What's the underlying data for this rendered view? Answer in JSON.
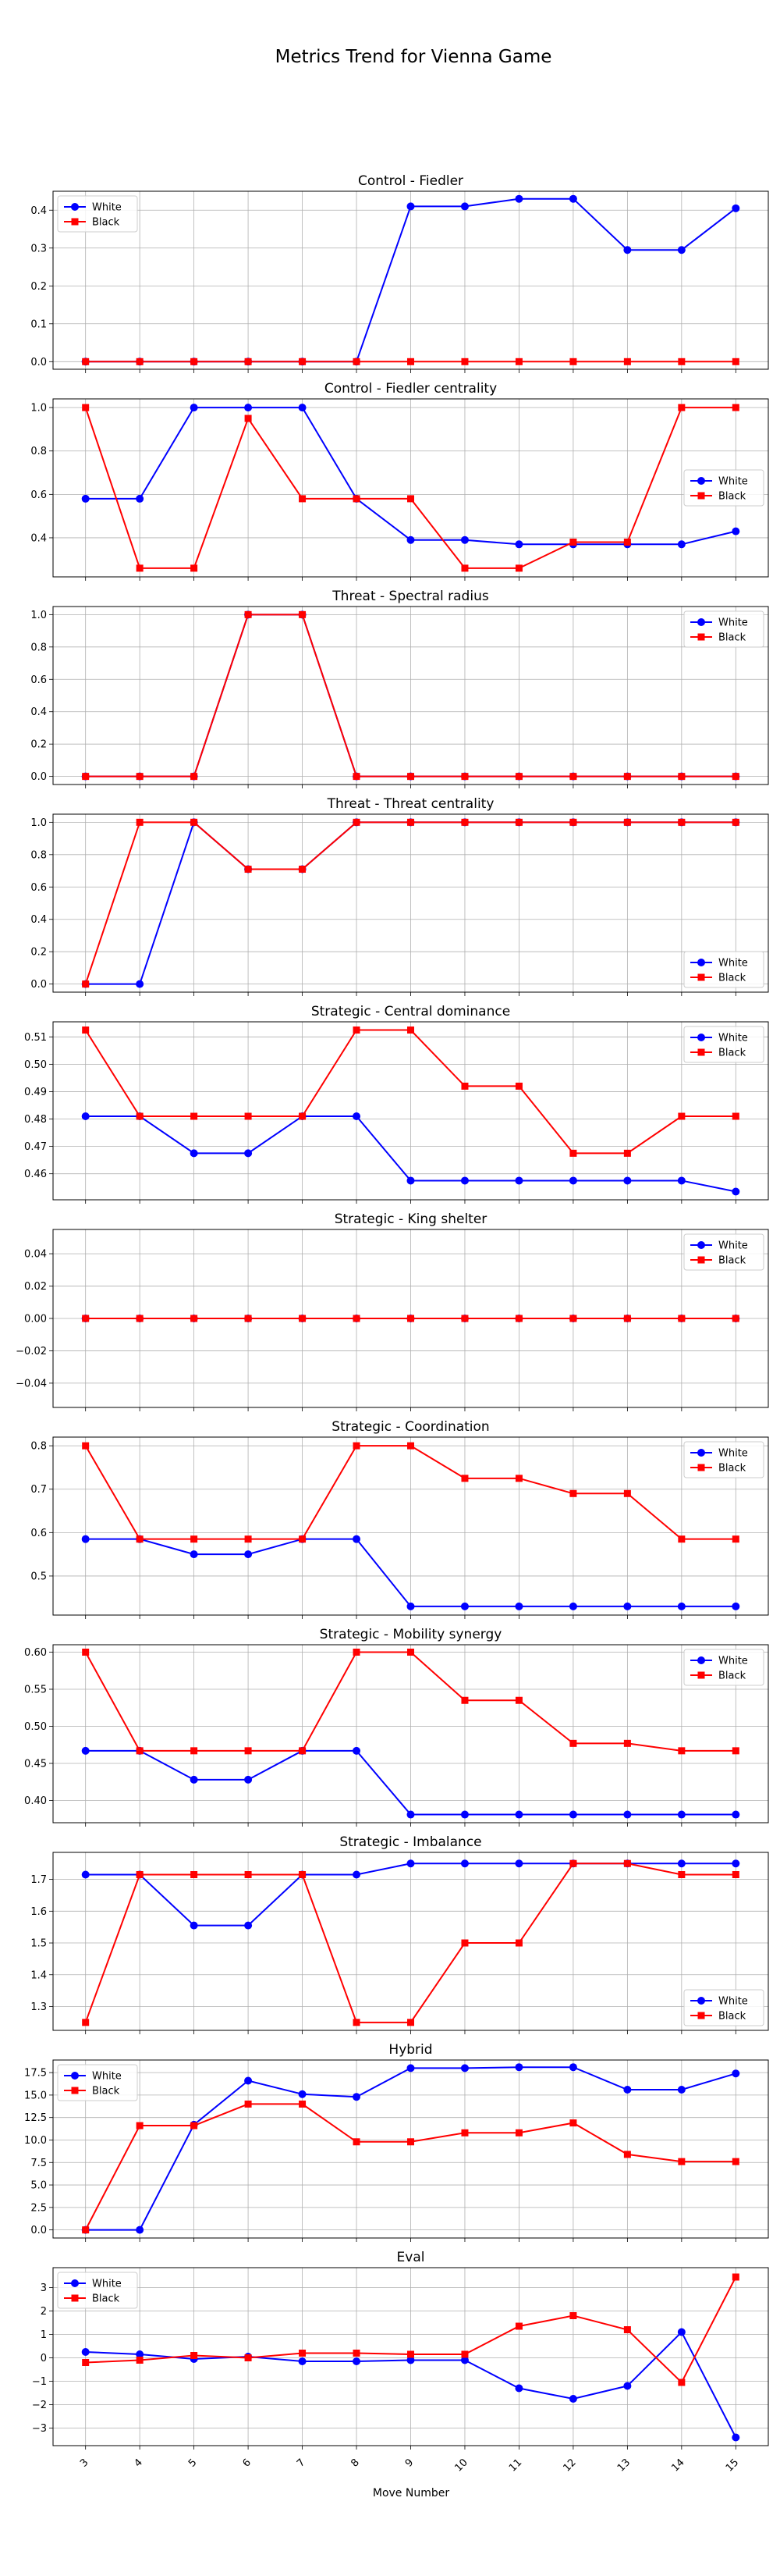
{
  "figure": {
    "title": "Metrics Trend for Vienna Game",
    "xlabel": "Move Number",
    "x_ticks": [
      3,
      4,
      5,
      6,
      7,
      8,
      9,
      10,
      11,
      12,
      13,
      14,
      15
    ]
  },
  "colors": {
    "white_series": "#0000ff",
    "black_series": "#ff0000",
    "grid": "#b0b0b0"
  },
  "chart_data": [
    {
      "type": "line",
      "title": "Control - Fiedler",
      "legend": "top-left",
      "x": [
        3,
        4,
        5,
        6,
        7,
        8,
        9,
        10,
        11,
        12,
        13,
        14,
        15
      ],
      "ylim": [
        -0.02,
        0.45
      ],
      "yticks": [
        0.0,
        0.1,
        0.2,
        0.3,
        0.4
      ],
      "ytick_labels": [
        "0.0",
        "0.1",
        "0.2",
        "0.3",
        "0.4"
      ],
      "series": [
        {
          "name": "White",
          "marker": "circle",
          "values": [
            0,
            0,
            0,
            0,
            0,
            0,
            0.41,
            0.41,
            0.43,
            0.43,
            0.295,
            0.295,
            0.405
          ]
        },
        {
          "name": "Black",
          "marker": "square",
          "values": [
            0,
            0,
            0,
            0,
            0,
            0,
            0,
            0,
            0,
            0,
            0,
            0,
            0
          ]
        }
      ]
    },
    {
      "type": "line",
      "title": "Control - Fiedler centrality",
      "legend": "center-right",
      "x": [
        3,
        4,
        5,
        6,
        7,
        8,
        9,
        10,
        11,
        12,
        13,
        14,
        15
      ],
      "ylim": [
        0.22,
        1.04
      ],
      "yticks": [
        0.4,
        0.6,
        0.8,
        1.0
      ],
      "ytick_labels": [
        "0.4",
        "0.6",
        "0.8",
        "1.0"
      ],
      "series": [
        {
          "name": "White",
          "marker": "circle",
          "values": [
            0.58,
            0.58,
            1.0,
            1.0,
            1.0,
            0.58,
            0.39,
            0.39,
            0.37,
            0.37,
            0.37,
            0.37,
            0.43
          ]
        },
        {
          "name": "Black",
          "marker": "square",
          "values": [
            1.0,
            0.26,
            0.26,
            0.95,
            0.58,
            0.58,
            0.58,
            0.26,
            0.26,
            0.38,
            0.38,
            1.0,
            1.0
          ]
        }
      ]
    },
    {
      "type": "line",
      "title": "Threat - Spectral radius",
      "legend": "top-right",
      "x": [
        3,
        4,
        5,
        6,
        7,
        8,
        9,
        10,
        11,
        12,
        13,
        14,
        15
      ],
      "ylim": [
        -0.05,
        1.05
      ],
      "yticks": [
        0.0,
        0.2,
        0.4,
        0.6,
        0.8,
        1.0
      ],
      "ytick_labels": [
        "0.0",
        "0.2",
        "0.4",
        "0.6",
        "0.8",
        "1.0"
      ],
      "series": [
        {
          "name": "White",
          "marker": "circle",
          "values": [
            0,
            0,
            0,
            1.0,
            1.0,
            0,
            0,
            0,
            0,
            0,
            0,
            0,
            0
          ]
        },
        {
          "name": "Black",
          "marker": "square",
          "values": [
            0,
            0,
            0,
            1.0,
            1.0,
            0,
            0,
            0,
            0,
            0,
            0,
            0,
            0
          ]
        }
      ]
    },
    {
      "type": "line",
      "title": "Threat - Threat centrality",
      "legend": "bottom-right",
      "x": [
        3,
        4,
        5,
        6,
        7,
        8,
        9,
        10,
        11,
        12,
        13,
        14,
        15
      ],
      "ylim": [
        -0.05,
        1.05
      ],
      "yticks": [
        0.0,
        0.2,
        0.4,
        0.6,
        0.8,
        1.0
      ],
      "ytick_labels": [
        "0.0",
        "0.2",
        "0.4",
        "0.6",
        "0.8",
        "1.0"
      ],
      "series": [
        {
          "name": "White",
          "marker": "circle",
          "values": [
            0,
            0,
            1.0,
            0.71,
            0.71,
            1.0,
            1.0,
            1.0,
            1.0,
            1.0,
            1.0,
            1.0,
            1.0
          ]
        },
        {
          "name": "Black",
          "marker": "square",
          "values": [
            0,
            1.0,
            1.0,
            0.71,
            0.71,
            1.0,
            1.0,
            1.0,
            1.0,
            1.0,
            1.0,
            1.0,
            1.0
          ]
        }
      ]
    },
    {
      "type": "line",
      "title": "Strategic - Central dominance",
      "legend": "top-right",
      "x": [
        3,
        4,
        5,
        6,
        7,
        8,
        9,
        10,
        11,
        12,
        13,
        14,
        15
      ],
      "ylim": [
        0.4505,
        0.5155
      ],
      "yticks": [
        0.46,
        0.47,
        0.48,
        0.49,
        0.5,
        0.51
      ],
      "ytick_labels": [
        "0.46",
        "0.47",
        "0.48",
        "0.49",
        "0.50",
        "0.51"
      ],
      "series": [
        {
          "name": "White",
          "marker": "circle",
          "values": [
            0.481,
            0.481,
            0.4675,
            0.4675,
            0.481,
            0.481,
            0.4575,
            0.4575,
            0.4575,
            0.4575,
            0.4575,
            0.4575,
            0.4535
          ]
        },
        {
          "name": "Black",
          "marker": "square",
          "values": [
            0.5125,
            0.481,
            0.481,
            0.481,
            0.481,
            0.5125,
            0.5125,
            0.492,
            0.492,
            0.4675,
            0.4675,
            0.481,
            0.481
          ]
        }
      ]
    },
    {
      "type": "line",
      "title": "Strategic - King shelter",
      "legend": "top-right",
      "x": [
        3,
        4,
        5,
        6,
        7,
        8,
        9,
        10,
        11,
        12,
        13,
        14,
        15
      ],
      "ylim": [
        -0.055,
        0.055
      ],
      "yticks": [
        -0.04,
        -0.02,
        0.0,
        0.02,
        0.04
      ],
      "ytick_labels": [
        "−0.04",
        "−0.02",
        "0.00",
        "0.02",
        "0.04"
      ],
      "series": [
        {
          "name": "White",
          "marker": "circle",
          "values": [
            0,
            0,
            0,
            0,
            0,
            0,
            0,
            0,
            0,
            0,
            0,
            0,
            0
          ]
        },
        {
          "name": "Black",
          "marker": "square",
          "values": [
            0,
            0,
            0,
            0,
            0,
            0,
            0,
            0,
            0,
            0,
            0,
            0,
            0
          ]
        }
      ]
    },
    {
      "type": "line",
      "title": "Strategic - Coordination",
      "legend": "top-right",
      "x": [
        3,
        4,
        5,
        6,
        7,
        8,
        9,
        10,
        11,
        12,
        13,
        14,
        15
      ],
      "ylim": [
        0.41,
        0.82
      ],
      "yticks": [
        0.5,
        0.6,
        0.7,
        0.8
      ],
      "ytick_labels": [
        "0.5",
        "0.6",
        "0.7",
        "0.8"
      ],
      "series": [
        {
          "name": "White",
          "marker": "circle",
          "values": [
            0.585,
            0.585,
            0.55,
            0.55,
            0.585,
            0.585,
            0.43,
            0.43,
            0.43,
            0.43,
            0.43,
            0.43,
            0.43
          ]
        },
        {
          "name": "Black",
          "marker": "square",
          "values": [
            0.8,
            0.585,
            0.585,
            0.585,
            0.585,
            0.8,
            0.8,
            0.725,
            0.725,
            0.69,
            0.69,
            0.585,
            0.585
          ]
        }
      ]
    },
    {
      "type": "line",
      "title": "Strategic - Mobility synergy",
      "legend": "top-right",
      "x": [
        3,
        4,
        5,
        6,
        7,
        8,
        9,
        10,
        11,
        12,
        13,
        14,
        15
      ],
      "ylim": [
        0.37,
        0.61
      ],
      "yticks": [
        0.4,
        0.45,
        0.5,
        0.55,
        0.6
      ],
      "ytick_labels": [
        "0.40",
        "0.45",
        "0.50",
        "0.55",
        "0.60"
      ],
      "series": [
        {
          "name": "White",
          "marker": "circle",
          "values": [
            0.467,
            0.467,
            0.428,
            0.428,
            0.467,
            0.467,
            0.381,
            0.381,
            0.381,
            0.381,
            0.381,
            0.381,
            0.381
          ]
        },
        {
          "name": "Black",
          "marker": "square",
          "values": [
            0.6,
            0.467,
            0.467,
            0.467,
            0.467,
            0.6,
            0.6,
            0.535,
            0.535,
            0.477,
            0.477,
            0.467,
            0.467
          ]
        }
      ]
    },
    {
      "type": "line",
      "title": "Strategic - Imbalance",
      "legend": "bottom-right",
      "x": [
        3,
        4,
        5,
        6,
        7,
        8,
        9,
        10,
        11,
        12,
        13,
        14,
        15
      ],
      "ylim": [
        1.225,
        1.785
      ],
      "yticks": [
        1.3,
        1.4,
        1.5,
        1.6,
        1.7
      ],
      "ytick_labels": [
        "1.3",
        "1.4",
        "1.5",
        "1.6",
        "1.7"
      ],
      "series": [
        {
          "name": "White",
          "marker": "circle",
          "values": [
            1.715,
            1.715,
            1.555,
            1.555,
            1.715,
            1.715,
            1.75,
            1.75,
            1.75,
            1.75,
            1.75,
            1.75,
            1.75
          ]
        },
        {
          "name": "Black",
          "marker": "square",
          "values": [
            1.25,
            1.715,
            1.715,
            1.715,
            1.715,
            1.25,
            1.25,
            1.5,
            1.5,
            1.75,
            1.75,
            1.715,
            1.715
          ]
        }
      ]
    },
    {
      "type": "line",
      "title": "Hybrid",
      "legend": "top-left",
      "x": [
        3,
        4,
        5,
        6,
        7,
        8,
        9,
        10,
        11,
        12,
        13,
        14,
        15
      ],
      "ylim": [
        -0.9,
        18.9
      ],
      "yticks": [
        0.0,
        2.5,
        5.0,
        7.5,
        10.0,
        12.5,
        15.0,
        17.5
      ],
      "ytick_labels": [
        "0.0",
        "2.5",
        "5.0",
        "7.5",
        "10.0",
        "12.5",
        "15.0",
        "17.5"
      ],
      "series": [
        {
          "name": "White",
          "marker": "circle",
          "values": [
            0,
            0,
            11.7,
            16.6,
            15.1,
            14.8,
            18.0,
            18.0,
            18.1,
            18.1,
            15.6,
            15.6,
            17.4
          ]
        },
        {
          "name": "Black",
          "marker": "square",
          "values": [
            0,
            11.6,
            11.6,
            14.0,
            14.0,
            9.8,
            9.8,
            10.8,
            10.8,
            11.9,
            8.4,
            7.6,
            7.6
          ]
        }
      ]
    },
    {
      "type": "line",
      "title": "Eval",
      "legend": "top-left",
      "x": [
        3,
        4,
        5,
        6,
        7,
        8,
        9,
        10,
        11,
        12,
        13,
        14,
        15
      ],
      "ylim": [
        -3.75,
        3.85
      ],
      "yticks": [
        -3,
        -2,
        -1,
        0,
        1,
        2,
        3
      ],
      "ytick_labels": [
        "−3",
        "−2",
        "−1",
        "0",
        "1",
        "2",
        "3"
      ],
      "series": [
        {
          "name": "White",
          "marker": "circle",
          "values": [
            0.25,
            0.15,
            -0.05,
            0.05,
            -0.15,
            -0.15,
            -0.1,
            -0.1,
            -1.3,
            -1.75,
            -1.2,
            1.1,
            -3.4
          ]
        },
        {
          "name": "Black",
          "marker": "square",
          "values": [
            -0.2,
            -0.1,
            0.1,
            0.0,
            0.2,
            0.2,
            0.15,
            0.15,
            1.35,
            1.8,
            1.2,
            -1.05,
            3.45
          ]
        }
      ]
    }
  ]
}
